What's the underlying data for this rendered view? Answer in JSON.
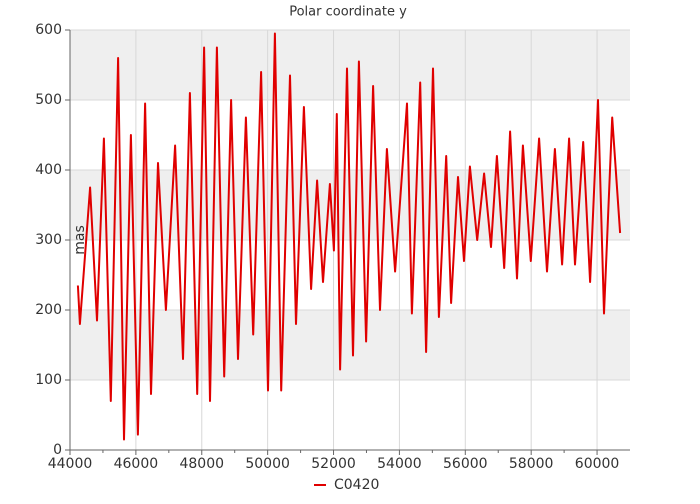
{
  "chart_data": {
    "type": "line",
    "title": "Polar coordinate y",
    "y_label": "mas",
    "x": [
      44240,
      44300,
      44610,
      44820,
      45030,
      45240,
      45460,
      45640,
      45850,
      46060,
      46280,
      46460,
      46670,
      46910,
      47190,
      47430,
      47640,
      47860,
      48070,
      48250,
      48460,
      48680,
      48890,
      49100,
      49340,
      49560,
      49800,
      50010,
      50220,
      50410,
      50680,
      50860,
      51100,
      51320,
      51500,
      51680,
      51890,
      52010,
      52100,
      52200,
      52410,
      52590,
      52770,
      52990,
      53200,
      53410,
      53620,
      53870,
      54230,
      54380,
      54630,
      54810,
      55020,
      55200,
      55420,
      55570,
      55780,
      55960,
      56140,
      56360,
      56570,
      56780,
      56960,
      57180,
      57360,
      57570,
      57750,
      57990,
      58240,
      58480,
      58720,
      58940,
      59150,
      59330,
      59580,
      59790,
      60030,
      60210,
      60460,
      60700
    ],
    "series": [
      {
        "name": "C0420",
        "color": "#e00000",
        "values": [
          235,
          180,
          375,
          185,
          445,
          70,
          560,
          15,
          450,
          22,
          495,
          80,
          410,
          200,
          435,
          130,
          510,
          80,
          575,
          70,
          575,
          105,
          500,
          130,
          475,
          165,
          540,
          85,
          595,
          85,
          535,
          180,
          490,
          230,
          385,
          240,
          380,
          285,
          480,
          115,
          545,
          135,
          555,
          155,
          520,
          200,
          430,
          255,
          495,
          195,
          525,
          140,
          545,
          190,
          420,
          210,
          390,
          270,
          405,
          300,
          395,
          290,
          420,
          260,
          455,
          245,
          435,
          270,
          445,
          255,
          430,
          265,
          445,
          265,
          440,
          240,
          500,
          195,
          475,
          310
        ]
      }
    ],
    "xlim": [
      44000,
      61000
    ],
    "ylim": [
      0,
      600
    ],
    "xticks": [
      44000,
      46000,
      48000,
      50000,
      52000,
      54000,
      56000,
      58000,
      60000
    ],
    "yticks": [
      0,
      100,
      200,
      300,
      400,
      500,
      600
    ],
    "grid": true
  }
}
